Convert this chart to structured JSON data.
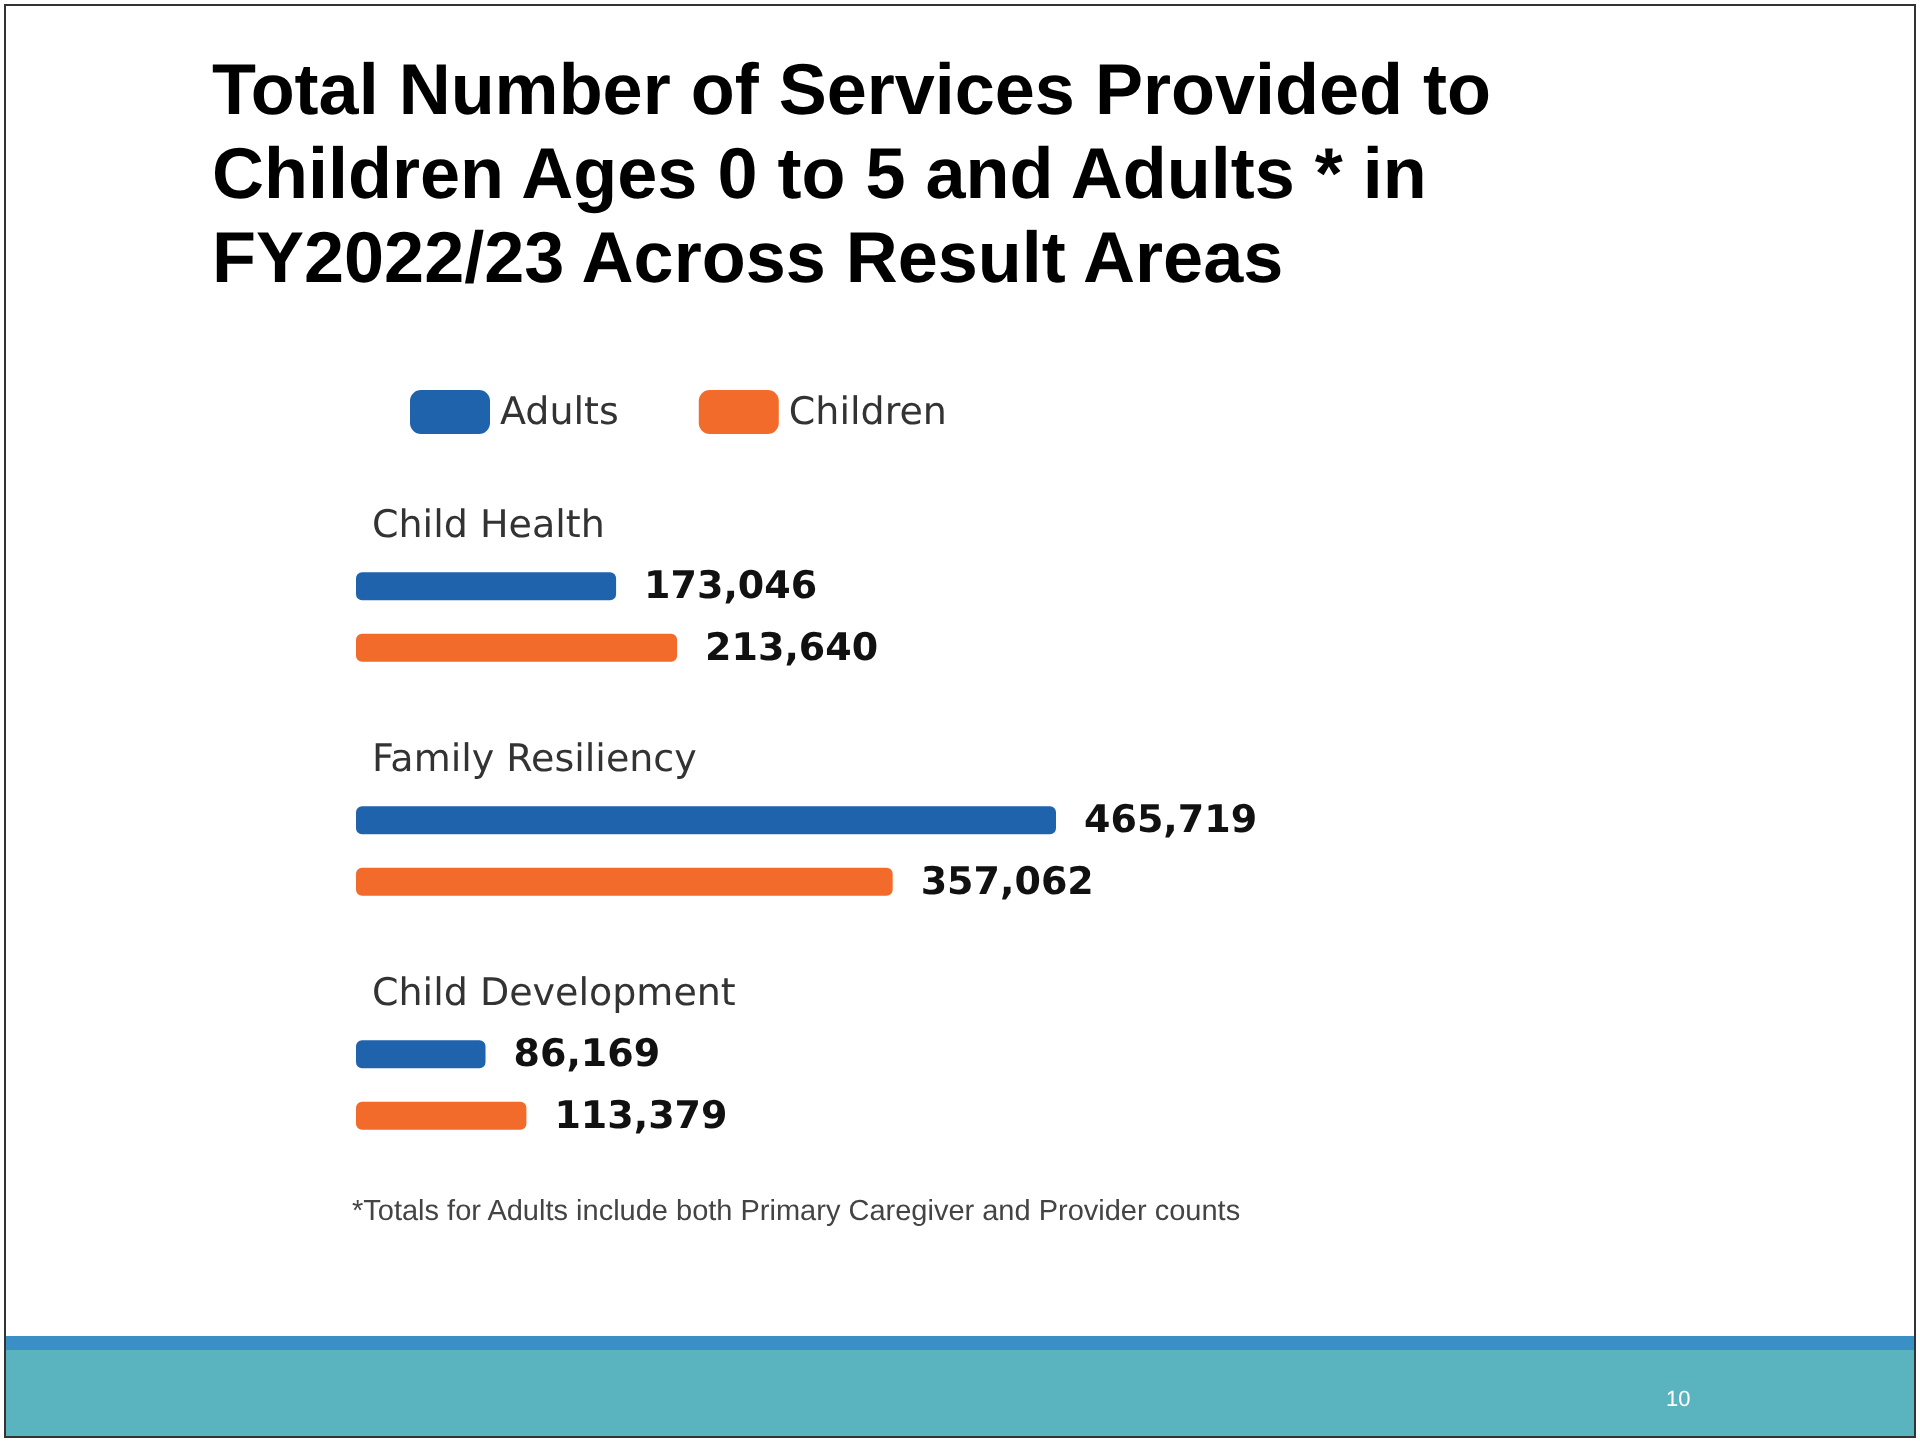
{
  "chart_data": {
    "type": "bar",
    "orientation": "horizontal",
    "title": "Total Number of Services Provided to Children Ages 0 to 5 and Adults * in FY2022/23 Across Result Areas",
    "categories": [
      "Child Health",
      "Family Resiliency",
      "Child Development"
    ],
    "series": [
      {
        "name": "Adults",
        "color": "#1f63ad",
        "values": [
          173046,
          465719,
          86169
        ],
        "value_labels": [
          "173,046",
          "465,719",
          "86,169"
        ]
      },
      {
        "name": "Children",
        "color": "#f26b2a",
        "values": [
          213640,
          357062,
          113379
        ],
        "value_labels": [
          "213,640",
          "357,062",
          "113,379"
        ]
      }
    ],
    "legend": "top left",
    "tick_labels": "y",
    "annotations": [
      "*Totals for Adults include both Primary Caregiver and Provider counts",
      "10"
    ]
  }
}
